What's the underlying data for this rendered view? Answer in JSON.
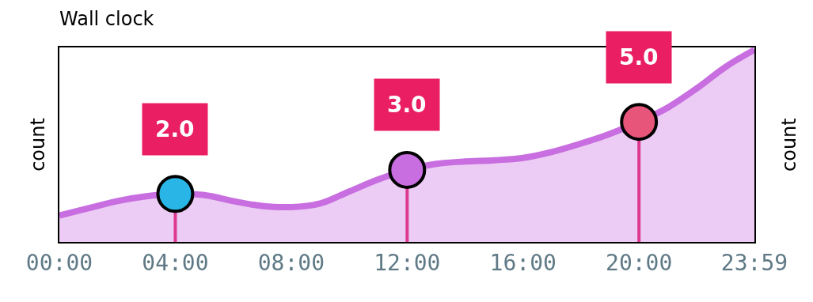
{
  "chart_data": {
    "type": "area",
    "title": "Wall clock",
    "ylabel": "count",
    "y2label": "count",
    "xlim": [
      0,
      23.9833
    ],
    "xticks": [
      {
        "value": 0,
        "label": "00:00"
      },
      {
        "value": 4,
        "label": "04:00"
      },
      {
        "value": 8,
        "label": "08:00"
      },
      {
        "value": 12,
        "label": "12:00"
      },
      {
        "value": 16,
        "label": "16:00"
      },
      {
        "value": 20,
        "label": "20:00"
      },
      {
        "value": 23.9833,
        "label": "23:59"
      }
    ],
    "ylim": [
      0,
      8.1
    ],
    "tick_labels": "x",
    "grid": false,
    "series": [
      {
        "type": "area",
        "color": "#c86ee0",
        "x": [
          0,
          1,
          2,
          3,
          4,
          5,
          6,
          7,
          8,
          9,
          10,
          11,
          12,
          13,
          14,
          15,
          16,
          17,
          18,
          19,
          20,
          21,
          22,
          23,
          23.9833
        ],
        "values": [
          1.1,
          1.4,
          1.7,
          1.9,
          2.0,
          1.95,
          1.7,
          1.5,
          1.45,
          1.6,
          2.1,
          2.6,
          3.0,
          3.25,
          3.35,
          3.4,
          3.5,
          3.75,
          4.1,
          4.5,
          5.0,
          5.6,
          6.4,
          7.3,
          8.0
        ]
      },
      {
        "type": "lollipop",
        "color": "#e91e63",
        "colors": [
          "#29b6e6",
          "#c86ee0",
          "#e8557a"
        ],
        "marker": "circle",
        "x": [
          4,
          12,
          20
        ],
        "values": [
          2,
          3,
          5
        ],
        "value_labels": [
          "2.0",
          "3.0",
          "5.0"
        ]
      }
    ]
  }
}
